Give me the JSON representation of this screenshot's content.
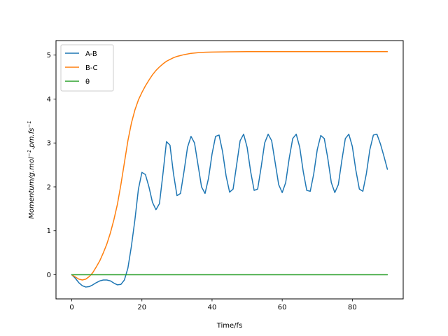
{
  "chart_data": {
    "type": "line",
    "title": "",
    "xlabel": "Time/fs",
    "ylabel_base": "Momentum/g.mol",
    "ylabel_sup1": "−1",
    "ylabel_mid": ".pm.fs",
    "ylabel_sup2": "−1",
    "xlim": [
      -4.5,
      94.5
    ],
    "ylim": [
      -0.55,
      5.33
    ],
    "xticks": [
      0,
      20,
      40,
      60,
      80
    ],
    "yticks": [
      0,
      1,
      2,
      3,
      4,
      5
    ],
    "grid": false,
    "legend_position": "upper-left",
    "series": [
      {
        "name": "A-B",
        "color": "#1f77b4",
        "points": [
          [
            0,
            0
          ],
          [
            1,
            -0.08
          ],
          [
            2,
            -0.18
          ],
          [
            3,
            -0.25
          ],
          [
            4,
            -0.28
          ],
          [
            5,
            -0.27
          ],
          [
            6,
            -0.23
          ],
          [
            7,
            -0.18
          ],
          [
            8,
            -0.14
          ],
          [
            9,
            -0.12
          ],
          [
            10,
            -0.12
          ],
          [
            11,
            -0.14
          ],
          [
            12,
            -0.19
          ],
          [
            13,
            -0.23
          ],
          [
            14,
            -0.22
          ],
          [
            15,
            -0.12
          ],
          [
            16,
            0.15
          ],
          [
            17,
            0.65
          ],
          [
            18,
            1.25
          ],
          [
            19,
            1.95
          ],
          [
            20,
            2.33
          ],
          [
            21,
            2.28
          ],
          [
            22,
            2.0
          ],
          [
            23,
            1.65
          ],
          [
            24,
            1.48
          ],
          [
            25,
            1.62
          ],
          [
            26,
            2.3
          ],
          [
            27,
            3.03
          ],
          [
            28,
            2.95
          ],
          [
            29,
            2.3
          ],
          [
            30,
            1.8
          ],
          [
            31,
            1.85
          ],
          [
            32,
            2.35
          ],
          [
            33,
            2.9
          ],
          [
            34,
            3.15
          ],
          [
            35,
            3.0
          ],
          [
            36,
            2.5
          ],
          [
            37,
            2.0
          ],
          [
            38,
            1.85
          ],
          [
            39,
            2.2
          ],
          [
            40,
            2.75
          ],
          [
            41,
            3.15
          ],
          [
            42,
            3.18
          ],
          [
            43,
            2.8
          ],
          [
            44,
            2.25
          ],
          [
            45,
            1.88
          ],
          [
            46,
            1.95
          ],
          [
            47,
            2.5
          ],
          [
            48,
            3.05
          ],
          [
            49,
            3.2
          ],
          [
            50,
            2.9
          ],
          [
            51,
            2.35
          ],
          [
            52,
            1.92
          ],
          [
            53,
            1.95
          ],
          [
            54,
            2.45
          ],
          [
            55,
            3.0
          ],
          [
            56,
            3.2
          ],
          [
            57,
            3.05
          ],
          [
            58,
            2.55
          ],
          [
            59,
            2.05
          ],
          [
            60,
            1.87
          ],
          [
            61,
            2.1
          ],
          [
            62,
            2.65
          ],
          [
            63,
            3.1
          ],
          [
            64,
            3.2
          ],
          [
            65,
            2.9
          ],
          [
            66,
            2.35
          ],
          [
            67,
            1.92
          ],
          [
            68,
            1.9
          ],
          [
            69,
            2.3
          ],
          [
            70,
            2.85
          ],
          [
            71,
            3.17
          ],
          [
            72,
            3.1
          ],
          [
            73,
            2.65
          ],
          [
            74,
            2.1
          ],
          [
            75,
            1.87
          ],
          [
            76,
            2.05
          ],
          [
            77,
            2.6
          ],
          [
            78,
            3.1
          ],
          [
            79,
            3.2
          ],
          [
            80,
            2.92
          ],
          [
            81,
            2.38
          ],
          [
            82,
            1.95
          ],
          [
            83,
            1.9
          ],
          [
            84,
            2.3
          ],
          [
            85,
            2.85
          ],
          [
            86,
            3.18
          ],
          [
            87,
            3.2
          ],
          [
            88,
            2.98
          ],
          [
            89,
            2.7
          ],
          [
            90,
            2.4
          ]
        ]
      },
      {
        "name": "B-C",
        "color": "#ff7f0e",
        "points": [
          [
            0,
            0
          ],
          [
            1,
            -0.05
          ],
          [
            2,
            -0.1
          ],
          [
            3,
            -0.12
          ],
          [
            4,
            -0.1
          ],
          [
            5,
            -0.04
          ],
          [
            6,
            0.05
          ],
          [
            7,
            0.18
          ],
          [
            8,
            0.32
          ],
          [
            9,
            0.5
          ],
          [
            10,
            0.7
          ],
          [
            11,
            0.95
          ],
          [
            12,
            1.25
          ],
          [
            13,
            1.6
          ],
          [
            14,
            2.05
          ],
          [
            15,
            2.55
          ],
          [
            16,
            3.05
          ],
          [
            17,
            3.45
          ],
          [
            18,
            3.75
          ],
          [
            19,
            3.98
          ],
          [
            20,
            4.15
          ],
          [
            21,
            4.3
          ],
          [
            22,
            4.43
          ],
          [
            23,
            4.55
          ],
          [
            24,
            4.65
          ],
          [
            25,
            4.73
          ],
          [
            26,
            4.8
          ],
          [
            27,
            4.86
          ],
          [
            28,
            4.9
          ],
          [
            29,
            4.94
          ],
          [
            30,
            4.97
          ],
          [
            32,
            5.01
          ],
          [
            34,
            5.04
          ],
          [
            36,
            5.055
          ],
          [
            38,
            5.065
          ],
          [
            40,
            5.07
          ],
          [
            45,
            5.075
          ],
          [
            50,
            5.078
          ],
          [
            60,
            5.08
          ],
          [
            70,
            5.08
          ],
          [
            80,
            5.08
          ],
          [
            90,
            5.08
          ]
        ]
      },
      {
        "name": "θ",
        "color": "#2ca02c",
        "points": [
          [
            0,
            0
          ],
          [
            90,
            0
          ]
        ]
      }
    ]
  }
}
